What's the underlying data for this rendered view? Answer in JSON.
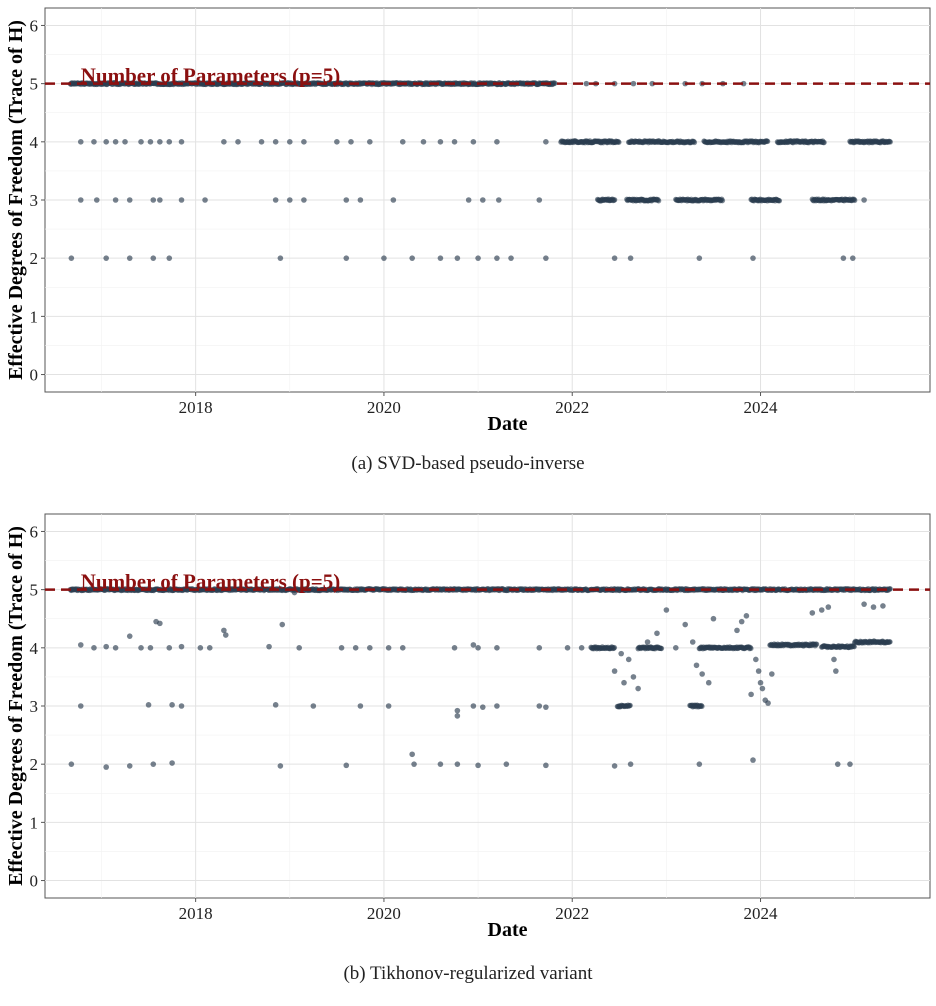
{
  "captions": {
    "a": "(a) SVD-based pseudo-inverse",
    "b": "(b) Tikhonov-regularized variant"
  },
  "chart_data": [
    {
      "type": "scatter",
      "title": "",
      "xlabel": "Date",
      "ylabel": "Effective Degrees of Freedom (Trace of H)",
      "xlim": [
        2016.4,
        2025.8
      ],
      "ylim": [
        -0.3,
        6.3
      ],
      "x_ticks": [
        2018,
        2020,
        2022,
        2024
      ],
      "x_tick_labels": [
        "2018",
        "2020",
        "2022",
        "2024"
      ],
      "y_ticks": [
        0,
        1,
        2,
        3,
        4,
        5,
        6
      ],
      "y_tick_labels": [
        "0",
        "1",
        "2",
        "3",
        "4",
        "5",
        "6"
      ],
      "grid": true,
      "point_color": "#2c3e50",
      "reference_line": {
        "y": 5,
        "label": "Number of Parameters (p=5)",
        "color": "#8b1010",
        "style": "dashed"
      },
      "series": [
        {
          "points": {
            "dense_ranges": [
              {
                "y": 5,
                "from": 2016.67,
                "to": 2021.82
              },
              {
                "y": 4,
                "from": 2021.88,
                "to": 2022.5
              },
              {
                "y": 4,
                "from": 2022.6,
                "to": 2023.3
              },
              {
                "y": 4,
                "from": 2023.4,
                "to": 2024.08
              },
              {
                "y": 4,
                "from": 2024.18,
                "to": 2024.68
              },
              {
                "y": 4,
                "from": 2024.95,
                "to": 2025.38
              },
              {
                "y": 3,
                "from": 2022.27,
                "to": 2022.45
              },
              {
                "y": 3,
                "from": 2022.58,
                "to": 2022.92
              },
              {
                "y": 3,
                "from": 2023.1,
                "to": 2023.6
              },
              {
                "y": 3,
                "from": 2023.9,
                "to": 2024.2
              },
              {
                "y": 3,
                "from": 2024.55,
                "to": 2025.0
              }
            ],
            "x": [
              2016.68,
              2016.78,
              2016.92,
              2017.05,
              2017.15,
              2017.25,
              2017.42,
              2017.52,
              2017.62,
              2017.72,
              2017.85,
              2018.3,
              2018.45,
              2018.7,
              2018.85,
              2019.0,
              2019.15,
              2019.5,
              2019.65,
              2019.85,
              2020.2,
              2020.42,
              2020.6,
              2020.75,
              2020.95,
              2021.2,
              2021.72,
              2016.78,
              2016.95,
              2017.15,
              2017.3,
              2017.55,
              2017.62,
              2017.85,
              2018.1,
              2018.85,
              2019.0,
              2019.15,
              2019.6,
              2019.75,
              2020.1,
              2020.9,
              2021.05,
              2021.22,
              2021.65,
              2016.68,
              2017.05,
              2017.3,
              2017.55,
              2017.72,
              2018.9,
              2019.6,
              2020.0,
              2020.3,
              2020.6,
              2020.78,
              2021.0,
              2021.2,
              2021.35,
              2021.72,
              2022.15,
              2022.25,
              2022.45,
              2022.65,
              2022.85,
              2023.2,
              2023.38,
              2023.6,
              2023.82,
              2022.45,
              2022.62,
              2023.35,
              2023.92,
              2024.88,
              2024.98,
              2025.1
            ],
            "y": [
              5,
              4,
              4,
              4,
              4,
              4,
              4,
              4,
              4,
              4,
              4,
              4,
              4,
              4,
              4,
              4,
              4,
              4,
              4,
              4,
              4,
              4,
              4,
              4,
              4,
              4,
              4,
              3,
              3,
              3,
              3,
              3,
              3,
              3,
              3,
              3,
              3,
              3,
              3,
              3,
              3,
              3,
              3,
              3,
              3,
              2,
              2,
              2,
              2,
              2,
              2,
              2,
              2,
              2,
              2,
              2,
              2,
              2,
              2,
              2,
              5,
              5,
              5,
              5,
              5,
              5,
              5,
              5,
              5,
              2,
              2,
              2,
              2,
              2,
              2,
              3
            ]
          }
        }
      ]
    },
    {
      "type": "scatter",
      "title": "",
      "xlabel": "Date",
      "ylabel": "Effective Degrees of Freedom (Trace of H)",
      "xlim": [
        2016.4,
        2025.8
      ],
      "ylim": [
        -0.3,
        6.3
      ],
      "x_ticks": [
        2018,
        2020,
        2022,
        2024
      ],
      "x_tick_labels": [
        "2018",
        "2020",
        "2022",
        "2024"
      ],
      "y_ticks": [
        0,
        1,
        2,
        3,
        4,
        5,
        6
      ],
      "y_tick_labels": [
        "0",
        "1",
        "2",
        "3",
        "4",
        "5",
        "6"
      ],
      "grid": true,
      "point_color": "#2c3e50",
      "reference_line": {
        "y": 5,
        "label": "Number of Parameters (p=5)",
        "color": "#8b1010",
        "style": "dashed"
      },
      "series": [
        {
          "points": {
            "dense_ranges": [
              {
                "y": 5,
                "from": 2016.67,
                "to": 2025.38
              },
              {
                "y": 4.0,
                "from": 2022.2,
                "to": 2022.45
              },
              {
                "y": 4.0,
                "from": 2022.7,
                "to": 2022.95
              },
              {
                "y": 4.0,
                "from": 2023.35,
                "to": 2023.9
              },
              {
                "y": 4.05,
                "from": 2024.1,
                "to": 2024.6
              },
              {
                "y": 4.02,
                "from": 2024.65,
                "to": 2025.0
              },
              {
                "y": 4.1,
                "from": 2025.0,
                "to": 2025.38
              },
              {
                "y": 3.0,
                "from": 2022.48,
                "to": 2022.62
              },
              {
                "y": 3.0,
                "from": 2023.25,
                "to": 2023.38
              }
            ],
            "x": [
              2016.68,
              2016.78,
              2016.92,
              2017.05,
              2017.15,
              2017.3,
              2017.42,
              2017.52,
              2017.58,
              2017.62,
              2017.72,
              2017.85,
              2018.05,
              2018.15,
              2018.3,
              2018.32,
              2018.78,
              2018.92,
              2019.05,
              2019.1,
              2019.55,
              2019.7,
              2019.85,
              2020.05,
              2020.2,
              2020.75,
              2020.95,
              2021.0,
              2021.2,
              2021.65,
              2021.95,
              2022.1,
              2022.45,
              2022.52,
              2022.55,
              2022.6,
              2022.65,
              2022.7,
              2022.8,
              2022.9,
              2023.0,
              2023.1,
              2023.2,
              2023.28,
              2023.32,
              2023.38,
              2023.45,
              2023.5,
              2023.75,
              2023.8,
              2023.85,
              2023.9,
              2023.95,
              2023.98,
              2024.0,
              2024.02,
              2024.05,
              2024.08,
              2024.12,
              2024.55,
              2024.65,
              2024.72,
              2024.78,
              2024.8,
              2025.1,
              2025.2,
              2025.3,
              2016.78,
              2017.5,
              2017.75,
              2017.85,
              2018.85,
              2019.25,
              2019.75,
              2020.05,
              2020.78,
              2020.78,
              2020.95,
              2021.05,
              2021.2,
              2021.65,
              2021.72,
              2016.68,
              2017.05,
              2017.3,
              2017.55,
              2017.75,
              2018.9,
              2019.6,
              2020.3,
              2020.32,
              2020.6,
              2020.78,
              2021.0,
              2021.3,
              2021.72,
              2022.45,
              2022.62,
              2023.35,
              2023.92,
              2024.82,
              2024.95
            ],
            "y": [
              5,
              4.05,
              4.0,
              4.02,
              4.0,
              4.2,
              4.0,
              4.0,
              4.45,
              4.42,
              4.0,
              4.02,
              4.0,
              4.0,
              4.3,
              4.22,
              4.02,
              4.4,
              4.95,
              4.0,
              4.0,
              4.0,
              4.0,
              4.0,
              4.0,
              4.0,
              4.05,
              4.0,
              4.0,
              4.0,
              4.0,
              4.0,
              3.6,
              3.9,
              3.4,
              3.8,
              3.5,
              3.3,
              4.1,
              4.25,
              4.65,
              4.0,
              4.4,
              4.1,
              3.7,
              3.55,
              3.4,
              4.5,
              4.3,
              4.45,
              4.55,
              3.2,
              3.8,
              3.6,
              3.4,
              3.3,
              3.1,
              3.05,
              3.55,
              4.6,
              4.65,
              4.7,
              3.8,
              3.6,
              4.75,
              4.7,
              4.72,
              3.0,
              3.02,
              3.02,
              3.0,
              3.02,
              3.0,
              3.0,
              3.0,
              2.92,
              2.83,
              3.0,
              2.98,
              3.0,
              3.0,
              2.98,
              2.0,
              1.95,
              1.97,
              2.0,
              2.02,
              1.97,
              1.98,
              2.17,
              2.0,
              2.0,
              2.0,
              1.98,
              2.0,
              1.98,
              1.97,
              2.0,
              2.0,
              2.07,
              2.0,
              2.0
            ]
          }
        }
      ]
    }
  ]
}
